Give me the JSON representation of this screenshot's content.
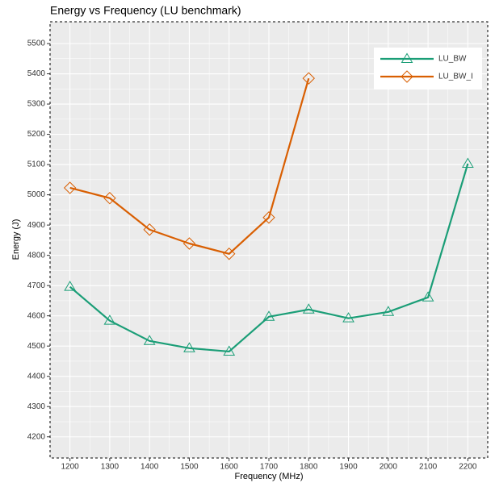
{
  "chart_data": {
    "type": "line",
    "title": "Energy vs Frequency (LU benchmark)",
    "x_label": "Frequency (MHz)",
    "y_label": "Energy (J)",
    "x": [
      1200,
      1300,
      1400,
      1500,
      1600,
      1700,
      1800,
      1900,
      2000,
      2100,
      2200
    ],
    "series": [
      {
        "name": "LU_BW",
        "color": "#1b9e77",
        "marker": "triangle",
        "values": [
          4696,
          4584,
          4517,
          4493,
          4482,
          4597,
          4621,
          4592,
          4613,
          4661,
          5103
        ]
      },
      {
        "name": "LU_BW_I",
        "color": "#d95f02",
        "marker": "diamond",
        "values": [
          5023,
          4989,
          4885,
          4839,
          4805,
          4925,
          5385,
          null,
          null,
          null,
          null
        ]
      }
    ],
    "xlim": [
      1150,
      2250
    ],
    "xticks": [
      1200,
      1300,
      1400,
      1500,
      1600,
      1700,
      1800,
      1900,
      2000,
      2100,
      2200
    ],
    "ylim": [
      4130,
      5572
    ],
    "yticks": [
      4200,
      4300,
      4400,
      4500,
      4600,
      4700,
      4800,
      4900,
      5000,
      5100,
      5200,
      5300,
      5400,
      5500
    ],
    "grid": true,
    "legend": "top right"
  }
}
